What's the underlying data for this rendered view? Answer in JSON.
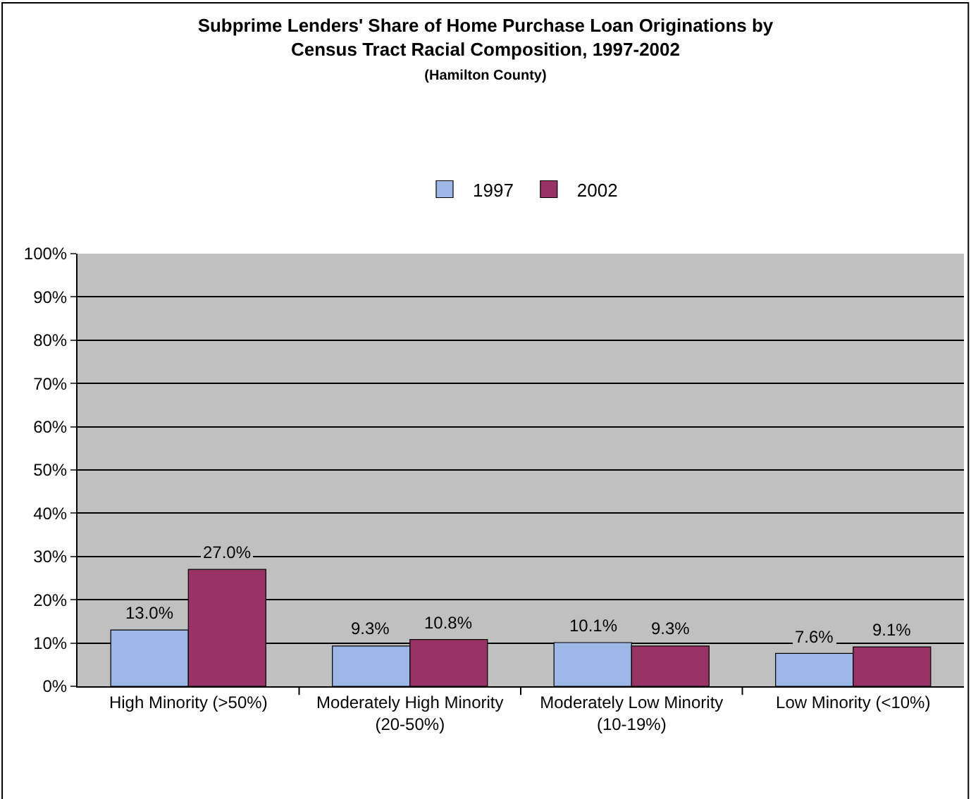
{
  "chart_data": {
    "type": "bar",
    "title": "Subprime Lenders' Share of Home Purchase Loan Originations by\nCensus Tract Racial Composition, 1997-2002",
    "subtitle": "(Hamilton County)",
    "categories": [
      "High Minority (>50%)",
      "Moderately High Minority\n(20-50%)",
      "Moderately Low Minority\n(10-19%)",
      "Low Minority (<10%)"
    ],
    "series": [
      {
        "name": "1997",
        "color": "#9db8e6",
        "values": [
          13.0,
          9.3,
          10.1,
          7.6
        ],
        "value_labels": [
          "13.0%",
          "9.3%",
          "10.1%",
          "7.6%"
        ]
      },
      {
        "name": "2002",
        "color": "#993366",
        "values": [
          27.0,
          10.8,
          9.3,
          9.1
        ],
        "value_labels": [
          "27.0%",
          "10.8%",
          "9.3%",
          "9.1%"
        ]
      }
    ],
    "ylim": [
      0,
      100
    ],
    "yticks": [
      {
        "value": 0,
        "label": "0%"
      },
      {
        "value": 10,
        "label": "10%"
      },
      {
        "value": 20,
        "label": "20%"
      },
      {
        "value": 30,
        "label": "30%"
      },
      {
        "value": 40,
        "label": "40%"
      },
      {
        "value": 50,
        "label": "50%"
      },
      {
        "value": 60,
        "label": "60%"
      },
      {
        "value": 70,
        "label": "70%"
      },
      {
        "value": 80,
        "label": "80%"
      },
      {
        "value": 90,
        "label": "90%"
      },
      {
        "value": 100,
        "label": "100%"
      }
    ],
    "grid": "y",
    "legend": "top"
  }
}
